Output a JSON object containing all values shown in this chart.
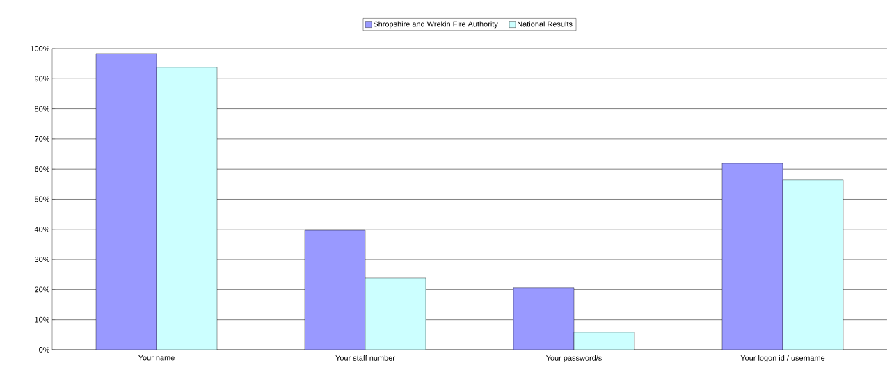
{
  "chart_data": {
    "type": "bar",
    "categories": [
      "Your name",
      "Your staff number",
      "Your password/s",
      "Your logon id / username"
    ],
    "series": [
      {
        "name": "Shropshire and Wrekin Fire Authority",
        "color": "#9999ff",
        "values": [
          98.4,
          39.7,
          20.6,
          61.9
        ]
      },
      {
        "name": "National Results",
        "color": "#ccffff",
        "values": [
          93.8,
          23.8,
          5.8,
          56.4
        ]
      }
    ],
    "ylim": [
      0,
      100
    ],
    "yticks": [
      {
        "value": 0,
        "label": "0%"
      },
      {
        "value": 10,
        "label": "10%"
      },
      {
        "value": 20,
        "label": "20%"
      },
      {
        "value": 30,
        "label": "30%"
      },
      {
        "value": 40,
        "label": "40%"
      },
      {
        "value": 50,
        "label": "50%"
      },
      {
        "value": 60,
        "label": "60%"
      },
      {
        "value": 70,
        "label": "70%"
      },
      {
        "value": 80,
        "label": "80%"
      },
      {
        "value": 90,
        "label": "90%"
      },
      {
        "value": 100,
        "label": "100%"
      }
    ],
    "grid": "y",
    "legend": "top"
  }
}
